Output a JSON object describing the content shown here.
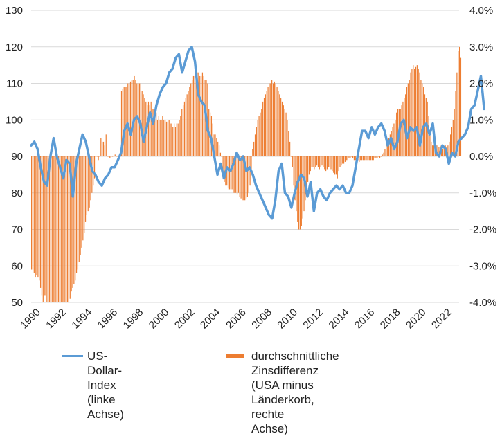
{
  "chart_data": {
    "type": "bar+line",
    "title": "",
    "x_range": [
      1990,
      2023.3
    ],
    "x_ticks": [
      "1990",
      "1992",
      "1994",
      "1996",
      "1998",
      "2000",
      "2002",
      "2004",
      "2006",
      "2008",
      "2010",
      "2012",
      "2014",
      "2016",
      "2018",
      "2020",
      "2022"
    ],
    "y_left": {
      "label": "",
      "range": [
        50,
        130
      ],
      "ticks": [
        "50",
        "60",
        "70",
        "80",
        "90",
        "100",
        "110",
        "120",
        "130"
      ]
    },
    "y_right": {
      "label": "",
      "range": [
        -4.0,
        4.0
      ],
      "ticks": [
        "-4.0%",
        "-3.0%",
        "-2.0%",
        "-1.0%",
        "0.0%",
        "1.0%",
        "2.0%",
        "3.0%",
        "4.0%"
      ]
    },
    "grid": true,
    "legend_position": "bottom",
    "colors": {
      "line": "#5b9bd5",
      "bars": "#ed7d31",
      "grid": "#d9d9d9"
    },
    "series": [
      {
        "name": "US-Dollar-Index (linke Achse)",
        "type": "line",
        "axis": "left",
        "x_start": 1990.0,
        "step": 0.25,
        "values": [
          93,
          94,
          92,
          87,
          83,
          82,
          90,
          95,
          90,
          87,
          84,
          89,
          88,
          79,
          88,
          92,
          96,
          94,
          90,
          86,
          85,
          83,
          82,
          84,
          85,
          87,
          87,
          89,
          91,
          97,
          99,
          96,
          100,
          101,
          99,
          94,
          98,
          102,
          99,
          104,
          107,
          109,
          110,
          113,
          114,
          117,
          118,
          113,
          116,
          119,
          120,
          116,
          107,
          105,
          104,
          97,
          95,
          90,
          85,
          88,
          84,
          87,
          86,
          88,
          91,
          89,
          90,
          86,
          87,
          85,
          82,
          80,
          78,
          76,
          74,
          73,
          78,
          86,
          88,
          80,
          79,
          76,
          80,
          83,
          85,
          84,
          79,
          83,
          75,
          80,
          81,
          79,
          78,
          80,
          81,
          82,
          81,
          82,
          80,
          80,
          82,
          87,
          92,
          97,
          97,
          95,
          98,
          96,
          98,
          99,
          97,
          93,
          95,
          92,
          94,
          99,
          100,
          95,
          98,
          97,
          98,
          93,
          98,
          99,
          96,
          99,
          91,
          90,
          93,
          92,
          88,
          91,
          90,
          94,
          95,
          96,
          98,
          103,
          104,
          108,
          112,
          103
        ]
      },
      {
        "name": "durchschnittliche Zinsdifferenz (USA minus Länderkorb, rechte Achse)",
        "type": "bar",
        "axis": "right",
        "x_start": 1990.0,
        "step": 0.1,
        "values": [
          -3.1,
          -3.1,
          -3.2,
          -3.3,
          -3.25,
          -3.3,
          -3.4,
          -3.6,
          -3.8,
          -4.0,
          -3.8,
          -3.8,
          -4.0,
          -4.0,
          -4.0,
          -4.0,
          -4.0,
          -4.0,
          -4.0,
          -4.0,
          -4.0,
          -4.0,
          -4.0,
          -4.0,
          -4.0,
          -4.0,
          -4.0,
          -4.0,
          -4.0,
          -4.0,
          -3.9,
          -3.7,
          -3.6,
          -3.5,
          -3.4,
          -3.2,
          -3.1,
          -2.9,
          -2.7,
          -2.5,
          -2.3,
          -2.1,
          -1.8,
          -1.6,
          -1.5,
          -1.4,
          -1.2,
          -1.0,
          -0.8,
          -0.6,
          0.0,
          0.0,
          -0.1,
          0.0,
          0.5,
          0.4,
          0.4,
          0.3,
          0.6,
          0.0,
          0.0,
          -0.05,
          0.0,
          0.0,
          0.0,
          0.05,
          0.0,
          0.0,
          0.0,
          0.1,
          1.8,
          1.85,
          1.9,
          1.9,
          1.9,
          2.0,
          2.0,
          2.05,
          2.1,
          2.1,
          2.2,
          2.1,
          2.0,
          2.0,
          2.0,
          2.0,
          1.8,
          1.7,
          1.6,
          1.5,
          1.4,
          1.5,
          1.4,
          1.5,
          1.3,
          1.3,
          1.2,
          1.2,
          1.0,
          1.1,
          1.0,
          1.0,
          1.1,
          1.0,
          1.0,
          0.95,
          0.95,
          1.0,
          0.9,
          0.9,
          0.8,
          0.9,
          0.8,
          0.9,
          0.9,
          1.0,
          1.1,
          1.3,
          1.4,
          1.5,
          1.6,
          1.7,
          1.8,
          1.9,
          2.0,
          2.1,
          2.2,
          2.2,
          2.2,
          2.3,
          2.3,
          2.2,
          2.2,
          2.3,
          2.2,
          2.1,
          2.1,
          2.0,
          1.3,
          1.2,
          1.1,
          0.9,
          0.6,
          0.6,
          0.5,
          0.4,
          0.3,
          0.1,
          0.0,
          -0.6,
          -0.7,
          -0.8,
          -0.8,
          -0.85,
          -0.9,
          -0.9,
          -0.9,
          -1.0,
          -1.0,
          -1.0,
          -1.05,
          -1.0,
          -1.1,
          -1.15,
          -1.2,
          -1.2,
          -1.2,
          -1.15,
          -1.1,
          -1.0,
          -0.8,
          -0.5,
          0.2,
          0.4,
          0.6,
          0.8,
          1.0,
          1.1,
          1.2,
          1.3,
          1.5,
          1.6,
          1.7,
          1.8,
          1.9,
          2.0,
          2.0,
          2.1,
          2.0,
          2.05,
          2.0,
          1.9,
          1.8,
          1.7,
          1.6,
          1.5,
          1.4,
          1.3,
          1.2,
          1.0,
          0.7,
          0.4,
          0.0,
          -0.3,
          -0.8,
          -1.2,
          -1.5,
          -1.8,
          -2.0,
          -2.0,
          -1.9,
          -1.7,
          -1.5,
          -1.2,
          -1.0,
          -0.7,
          -0.5,
          -0.4,
          -0.3,
          -0.3,
          -0.35,
          -0.3,
          -0.25,
          -0.3,
          -0.35,
          -0.3,
          -0.25,
          -0.3,
          -0.35,
          -0.4,
          -0.35,
          -0.3,
          -0.3,
          -0.35,
          -0.4,
          -0.45,
          -0.5,
          -0.5,
          -0.6,
          -0.4,
          -0.3,
          -0.25,
          -0.2,
          -0.2,
          -0.15,
          -0.1,
          -0.1,
          -0.05,
          -0.05,
          0.0,
          -0.05,
          -0.1,
          -0.1,
          -0.1,
          -0.1,
          -0.15,
          -0.1,
          -0.1,
          -0.1,
          -0.1,
          -0.1,
          -0.1,
          -0.1,
          -0.1,
          -0.1,
          -0.1,
          -0.1,
          -0.05,
          -0.05,
          -0.05,
          0.0,
          -0.05,
          0.0,
          0.05,
          0.1,
          0.2,
          0.3,
          0.4,
          0.5,
          0.6,
          0.7,
          0.8,
          0.9,
          1.0,
          1.2,
          1.3,
          1.3,
          1.3,
          1.4,
          1.5,
          1.6,
          1.7,
          1.9,
          2.0,
          2.1,
          2.3,
          2.4,
          2.5,
          2.4,
          2.45,
          2.5,
          2.4,
          2.3,
          2.1,
          2.0,
          1.9,
          1.7,
          1.6,
          1.5,
          1.1,
          0.6,
          0.4,
          0.3,
          0.3,
          0.35,
          0.3,
          0.3,
          0.25,
          0.3,
          0.2,
          0.2,
          0.2,
          0.3,
          0.25,
          0.3,
          0.4,
          0.6,
          0.8,
          1.0,
          1.3,
          1.8,
          2.3,
          2.9,
          3.0,
          2.7
        ]
      }
    ]
  },
  "legend": {
    "items": [
      {
        "label": "US-Dollar-Index\n(linke Achse)",
        "swatch": "line"
      },
      {
        "label": "durchschnittliche Zinsdifferenz\n(USA minus Länderkorb, rechte\nAchse)",
        "swatch": "bar"
      }
    ]
  }
}
